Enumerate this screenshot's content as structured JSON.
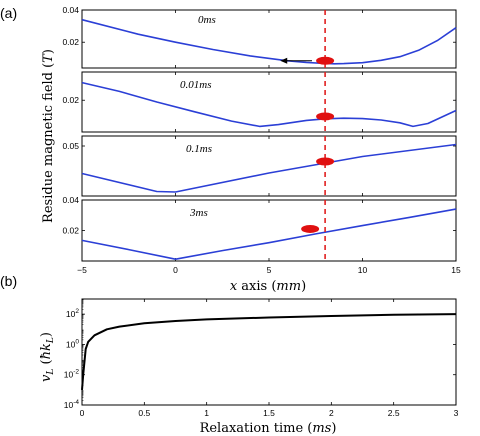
{
  "figure": {
    "panel_a_label": "(a)",
    "panel_b_label": "(b)"
  },
  "chart_data": [
    {
      "type": "line",
      "panel": "a",
      "ylabel": "Residue magnetic field (T)",
      "xlabel": "x axis (mm)",
      "xlim": [
        -5,
        15
      ],
      "xticks": [
        "−5",
        "0",
        "5",
        "10",
        "15"
      ],
      "grid": false,
      "dashed_marker_x": 8,
      "subplots": [
        {
          "label": "0ms",
          "ylim": [
            0.004,
            0.04
          ],
          "yticks": [
            {
              "v": 0.02,
              "t": "0.02"
            },
            {
              "v": 0.04,
              "t": "0.04"
            }
          ],
          "x": [
            -5,
            -2,
            0,
            2,
            4,
            6,
            7,
            8,
            8.5,
            9,
            10,
            11,
            12,
            13,
            14,
            15
          ],
          "y": [
            0.034,
            0.025,
            0.02,
            0.0155,
            0.0115,
            0.0085,
            0.0075,
            0.0068,
            0.0066,
            0.0067,
            0.0073,
            0.0088,
            0.011,
            0.015,
            0.021,
            0.029
          ],
          "dot": {
            "x": 8,
            "y": 0.0085
          },
          "arrow": {
            "from": 7.3,
            "to": 5.6,
            "y": 0.0085
          }
        },
        {
          "label": "0.01ms",
          "ylim": [
            0.002,
            0.036
          ],
          "yticks": [
            {
              "v": 0.02,
              "t": "0.02"
            }
          ],
          "x": [
            -5,
            -3,
            -1,
            1,
            3,
            4.5,
            5.5,
            7,
            8,
            9,
            10,
            11,
            12,
            12.7,
            13.5,
            15
          ],
          "y": [
            0.03,
            0.025,
            0.019,
            0.0135,
            0.0082,
            0.0052,
            0.0062,
            0.0086,
            0.0095,
            0.0098,
            0.0096,
            0.0088,
            0.0072,
            0.0052,
            0.0068,
            0.0142
          ],
          "dot": {
            "x": 8,
            "y": 0.0108
          }
        },
        {
          "label": "0.1ms",
          "ylim": [
            0.04,
            0.052
          ],
          "yticks": [
            {
              "v": 0.05,
              "t": "0.05"
            }
          ],
          "x": [
            -5,
            -1,
            0,
            5,
            10,
            15
          ],
          "y": [
            0.0445,
            0.0409,
            0.0408,
            0.0446,
            0.0479,
            0.0503
          ],
          "dot": {
            "x": 8,
            "y": 0.0469
          }
        },
        {
          "label": "3ms",
          "ylim": [
            0.0,
            0.04
          ],
          "yticks": [
            {
              "v": 0.02,
              "t": "0.02"
            },
            {
              "v": 0.04,
              "t": "0.04"
            }
          ],
          "x": [
            -5,
            -2.5,
            0,
            2.5,
            5,
            7.5,
            10,
            12.5,
            15
          ],
          "y": [
            0.0135,
            0.0075,
            0.0012,
            0.0068,
            0.012,
            0.0178,
            0.0232,
            0.0286,
            0.034
          ],
          "dot": {
            "x": 7.2,
            "y": 0.021
          }
        }
      ]
    },
    {
      "type": "line",
      "panel": "b",
      "ylabel": "vL (ħkL)",
      "xlabel": "Relaxation time (ms)",
      "xlim": [
        0,
        3
      ],
      "xticks": [
        "0",
        "0.5",
        "1",
        "1.5",
        "2",
        "2.5",
        "3"
      ],
      "ylim_log10": [
        -4,
        3
      ],
      "yticks": [
        {
          "exp": -4,
          "t": "10",
          "sup": "-4"
        },
        {
          "exp": -2,
          "t": "10",
          "sup": "-2"
        },
        {
          "exp": 0,
          "t": "10",
          "sup": "0"
        },
        {
          "exp": 2,
          "t": "10",
          "sup": "2"
        }
      ],
      "x": [
        0,
        0.01,
        0.03,
        0.05,
        0.1,
        0.2,
        0.3,
        0.5,
        0.75,
        1.0,
        1.5,
        2.0,
        2.5,
        3.0
      ],
      "y": [
        0.001,
        0.01,
        0.5,
        1.5,
        4,
        10,
        15,
        25,
        35,
        45,
        60,
        75,
        90,
        100
      ]
    }
  ],
  "labels": {
    "a_ylabel_main": "Residue magnetic field (",
    "a_ylabel_unit": "T",
    "a_ylabel_close": ")",
    "a_xlabel_var": "x",
    "a_xlabel_main": " axis (",
    "a_xlabel_unit": "mm",
    "a_xlabel_close": ")",
    "b_ylabel_var": "v",
    "b_ylabel_sub": "L",
    "b_ylabel_open": " (",
    "b_ylabel_hbar": "ħ",
    "b_ylabel_k": "k",
    "b_ylabel_ksub": "L",
    "b_ylabel_close": ")",
    "b_xlabel_main": "Relaxation time (",
    "b_xlabel_unit": "ms",
    "b_xlabel_close": ")"
  }
}
